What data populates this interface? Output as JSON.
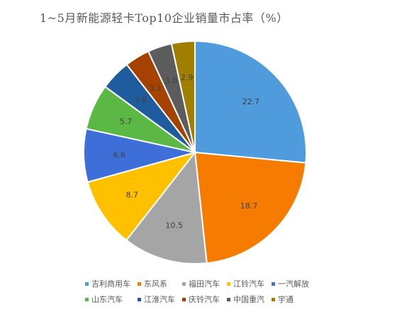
{
  "chart_data": {
    "type": "pie",
    "title": "1~5月新能源轻卡Top10企业销量市占率（%）",
    "categories": [
      "吉利商用车",
      "东风系",
      "福田汽车",
      "江铃汽车",
      "一汽解放",
      "山东汽车",
      "江淮汽车",
      "庆铃汽车",
      "中国重汽",
      "宇通"
    ],
    "values": [
      22.7,
      18.7,
      10.5,
      8.7,
      6.6,
      5.7,
      3.8,
      3.1,
      3.0,
      2.9
    ],
    "labels": [
      "22.7",
      "18.7",
      "10.5",
      "8.7",
      "6.6",
      "5.7",
      "3.8",
      "3.1",
      "3.0",
      "2.9"
    ],
    "colors": [
      "#4F9BDC",
      "#F57C00",
      "#A5A5A5",
      "#FFC000",
      "#3E6FD8",
      "#5BB844",
      "#1F5C9E",
      "#A64200",
      "#5C5C5C",
      "#A07E00"
    ],
    "legend": "bottom",
    "start_angle_deg": 0,
    "direction": "clockwise"
  }
}
